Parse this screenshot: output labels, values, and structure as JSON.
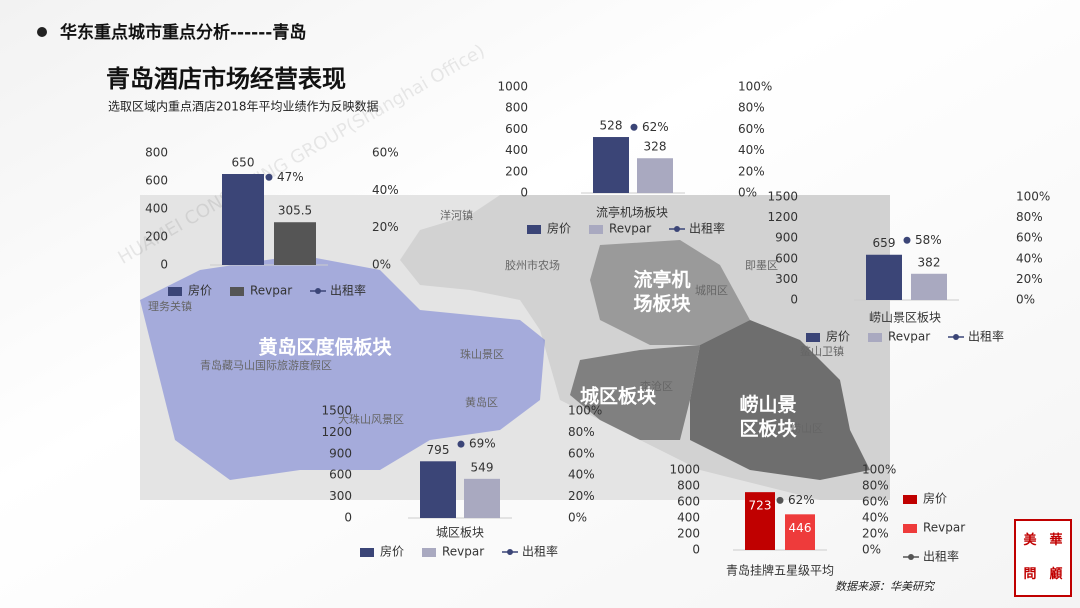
{
  "header": {
    "section": "华东重点城市重点分析------青岛",
    "title": "青岛酒店市场经营表现",
    "subtitle": "选取区域内重点酒店2018年平均业绩作为反映数据"
  },
  "source": "数据来源：华美研究",
  "logo": "華美顧問",
  "watermark": "HUAMEI CONSULTING GROUP(Shanghai Office)",
  "map": {
    "labels": [
      "黄岛区度假板块",
      "流亭机场板块",
      "城区板块",
      "崂山景区板块",
      "洋河镇",
      "胶州市农场",
      "珠山景区",
      "黄岛区",
      "青岛藏马山国际旅游度假区",
      "理务关镇",
      "大珠山风景区",
      "即墨区",
      "城阳区",
      "李沧区",
      "崂山区",
      "鳌山卫镇"
    ]
  },
  "chart_data": [
    {
      "type": "bar",
      "categories": [
        null
      ],
      "series": [
        {
          "name": "房价",
          "color": "#3b4577",
          "values": [
            650
          ]
        },
        {
          "name": "Revpar",
          "color": "#555555",
          "values": [
            305.5
          ]
        },
        {
          "name": "出租率",
          "color": "#3b4577",
          "axis": "y2",
          "values": [
            47
          ],
          "value_labels": [
            "47%"
          ]
        }
      ],
      "ylim": [
        0,
        800
      ],
      "yticks": [
        0,
        200,
        400,
        600,
        800
      ],
      "y2lim": [
        0,
        60
      ],
      "y2ticks": [
        {
          "value": 0,
          "label": "0%"
        },
        {
          "value": 20,
          "label": "20%"
        },
        {
          "value": 40,
          "label": "40%"
        },
        {
          "value": 60,
          "label": "60%"
        }
      ]
    },
    {
      "type": "bar",
      "categories": [
        "流亭机场板块"
      ],
      "series": [
        {
          "name": "房价",
          "color": "#3b4577",
          "values": [
            528
          ]
        },
        {
          "name": "Revpar",
          "color": "#a9a9c0",
          "values": [
            328
          ]
        },
        {
          "name": "出租率",
          "color": "#3b4577",
          "axis": "y2",
          "values": [
            62
          ],
          "value_labels": [
            "62%"
          ]
        }
      ],
      "ylim": [
        0,
        1000
      ],
      "yticks": [
        0,
        200,
        400,
        600,
        800,
        1000
      ],
      "y2lim": [
        0,
        100
      ],
      "y2ticks": [
        {
          "value": 0,
          "label": "0%"
        },
        {
          "value": 20,
          "label": "20%"
        },
        {
          "value": 40,
          "label": "40%"
        },
        {
          "value": 60,
          "label": "60%"
        },
        {
          "value": 80,
          "label": "80%"
        },
        {
          "value": 100,
          "label": "100%"
        }
      ]
    },
    {
      "type": "bar",
      "categories": [
        "崂山景区板块"
      ],
      "series": [
        {
          "name": "房价",
          "color": "#3b4577",
          "values": [
            659
          ]
        },
        {
          "name": "Revpar",
          "color": "#a9a9c0",
          "values": [
            382
          ]
        },
        {
          "name": "出租率",
          "color": "#3b4577",
          "axis": "y2",
          "values": [
            58
          ],
          "value_labels": [
            "58%"
          ]
        }
      ],
      "ylim": [
        0,
        1500
      ],
      "yticks": [
        0,
        300,
        600,
        900,
        1200,
        1500
      ],
      "y2lim": [
        0,
        100
      ],
      "y2ticks": [
        {
          "value": 0,
          "label": "0%"
        },
        {
          "value": 20,
          "label": "20%"
        },
        {
          "value": 40,
          "label": "40%"
        },
        {
          "value": 60,
          "label": "60%"
        },
        {
          "value": 80,
          "label": "80%"
        },
        {
          "value": 100,
          "label": "100%"
        }
      ]
    },
    {
      "type": "bar",
      "categories": [
        "城区板块"
      ],
      "series": [
        {
          "name": "房价",
          "color": "#3b4577",
          "values": [
            795
          ]
        },
        {
          "name": "Revpar",
          "color": "#a9a9c0",
          "values": [
            549
          ]
        },
        {
          "name": "出租率",
          "color": "#3b4577",
          "axis": "y2",
          "values": [
            69
          ],
          "value_labels": [
            "69%"
          ]
        }
      ],
      "ylim": [
        0,
        1500
      ],
      "yticks": [
        0,
        300,
        600,
        900,
        1200,
        1500
      ],
      "y2lim": [
        0,
        100
      ],
      "y2ticks": [
        {
          "value": 0,
          "label": "0%"
        },
        {
          "value": 20,
          "label": "20%"
        },
        {
          "value": 40,
          "label": "40%"
        },
        {
          "value": 60,
          "label": "60%"
        },
        {
          "value": 80,
          "label": "80%"
        },
        {
          "value": 100,
          "label": "100%"
        }
      ]
    },
    {
      "type": "bar",
      "categories": [
        "青岛挂牌五星级平均"
      ],
      "series": [
        {
          "name": "房价",
          "color": "#c00000",
          "values": [
            723
          ]
        },
        {
          "name": "Revpar",
          "color": "#ee3b3b",
          "values": [
            446
          ]
        },
        {
          "name": "出租率",
          "color": "#555555",
          "axis": "y2",
          "values": [
            62
          ],
          "value_labels": [
            "62%"
          ]
        }
      ],
      "ylim": [
        0,
        1000
      ],
      "yticks": [
        0,
        200,
        400,
        600,
        800,
        1000
      ],
      "y2lim": [
        0,
        100
      ],
      "y2ticks": [
        {
          "value": 0,
          "label": "0%"
        },
        {
          "value": 20,
          "label": "20%"
        },
        {
          "value": 40,
          "label": "40%"
        },
        {
          "value": 60,
          "label": "60%"
        },
        {
          "value": 80,
          "label": "80%"
        },
        {
          "value": 100,
          "label": "100%"
        }
      ],
      "legend": "right",
      "labels_inside": true
    }
  ]
}
